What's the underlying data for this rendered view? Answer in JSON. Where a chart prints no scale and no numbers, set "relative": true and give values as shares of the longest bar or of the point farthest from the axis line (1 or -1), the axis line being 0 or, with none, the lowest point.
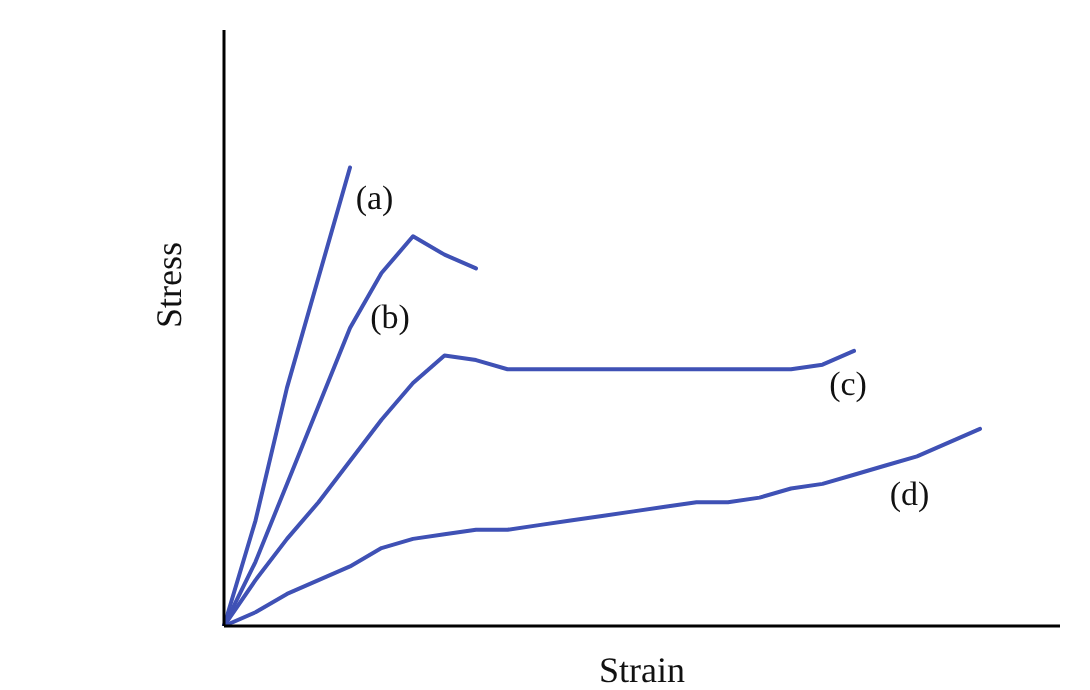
{
  "chart_data": {
    "type": "line",
    "relative": true,
    "xlabel": "Strain",
    "ylabel": "Stress",
    "marker": "none",
    "line_style": "solid",
    "categories": [
      null,
      null,
      null,
      null,
      null,
      null,
      null,
      null,
      null,
      null,
      null,
      null,
      null,
      null,
      null,
      null,
      null,
      null,
      null,
      null,
      null,
      null,
      null,
      null,
      null
    ],
    "series": [
      {
        "name": "(a)",
        "color": "#3f51b5",
        "values": [
          0,
          0.23,
          0.52,
          0.76,
          1,
          null,
          null,
          null,
          null,
          null,
          null,
          null,
          null,
          null,
          null,
          null,
          null,
          null,
          null,
          null,
          null,
          null,
          null,
          null,
          null
        ]
      },
      {
        "name": "(b)",
        "color": "#3f51b5",
        "values": [
          0,
          0.14,
          0.31,
          0.48,
          0.65,
          0.77,
          0.85,
          0.81,
          0.78,
          null,
          null,
          null,
          null,
          null,
          null,
          null,
          null,
          null,
          null,
          null,
          null,
          null,
          null,
          null,
          null
        ]
      },
      {
        "name": "(c)",
        "color": "#3f51b5",
        "values": [
          0,
          0.1,
          0.19,
          0.27,
          0.36,
          0.45,
          0.53,
          0.59,
          0.58,
          0.56,
          0.56,
          0.56,
          0.56,
          0.56,
          0.56,
          0.56,
          0.56,
          0.56,
          0.56,
          0.57,
          0.6,
          null,
          null,
          null,
          null
        ]
      },
      {
        "name": "(d)",
        "color": "#3f51b5",
        "values": [
          0,
          0.03,
          0.07,
          0.1,
          0.13,
          0.17,
          0.19,
          0.2,
          0.21,
          0.21,
          0.22,
          0.23,
          0.24,
          0.25,
          0.26,
          0.27,
          0.27,
          0.28,
          0.3,
          0.31,
          0.33,
          0.35,
          0.37,
          0.4,
          0.43
        ]
      }
    ]
  }
}
